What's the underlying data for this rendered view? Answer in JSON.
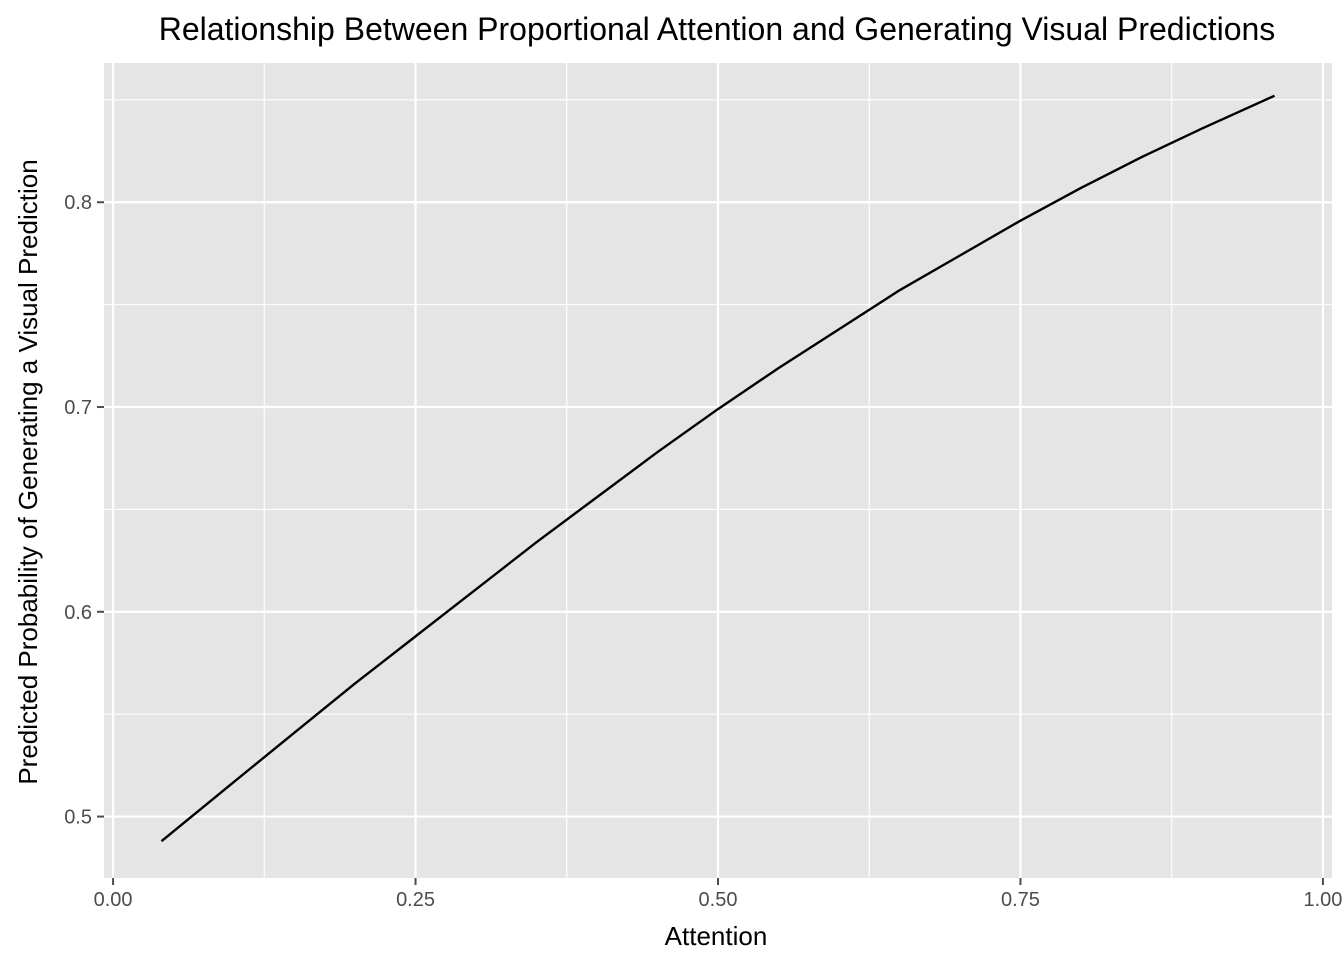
{
  "chart_data": {
    "type": "line",
    "title": "Relationship Between Proportional Attention and Generating Visual Predictions",
    "xlabel": "Attention",
    "ylabel": "Predicted Probability of Generating a Visual Prediction",
    "xlim": [
      -0.0075,
      1.0075
    ],
    "ylim": [
      0.47,
      0.868
    ],
    "x_ticks": [
      0.0,
      0.25,
      0.5,
      0.75,
      1.0
    ],
    "x_tick_labels": [
      "0.00",
      "0.25",
      "0.50",
      "0.75",
      "1.00"
    ],
    "y_ticks": [
      0.5,
      0.6,
      0.7,
      0.8
    ],
    "y_tick_labels": [
      "0.5",
      "0.6",
      "0.7",
      "0.8"
    ],
    "x_minor_ticks": [
      0.125,
      0.375,
      0.625,
      0.875
    ],
    "y_minor_ticks": [
      0.55,
      0.65,
      0.75,
      0.85
    ],
    "grid": true,
    "legend": "none",
    "colors": {
      "panel": "#e5e5e5",
      "grid": "#ffffff",
      "line": "#000000",
      "tick": "#4d4d4d"
    },
    "series": [
      {
        "x": [
          0.04,
          0.1,
          0.15,
          0.2,
          0.25,
          0.3,
          0.35,
          0.4,
          0.45,
          0.5,
          0.55,
          0.6,
          0.65,
          0.7,
          0.75,
          0.8,
          0.85,
          0.9,
          0.96
        ],
        "values": [
          0.488,
          0.517,
          0.541,
          0.565,
          0.588,
          0.611,
          0.634,
          0.656,
          0.678,
          0.699,
          0.719,
          0.738,
          0.757,
          0.774,
          0.791,
          0.807,
          0.822,
          0.836,
          0.852
        ]
      }
    ]
  }
}
